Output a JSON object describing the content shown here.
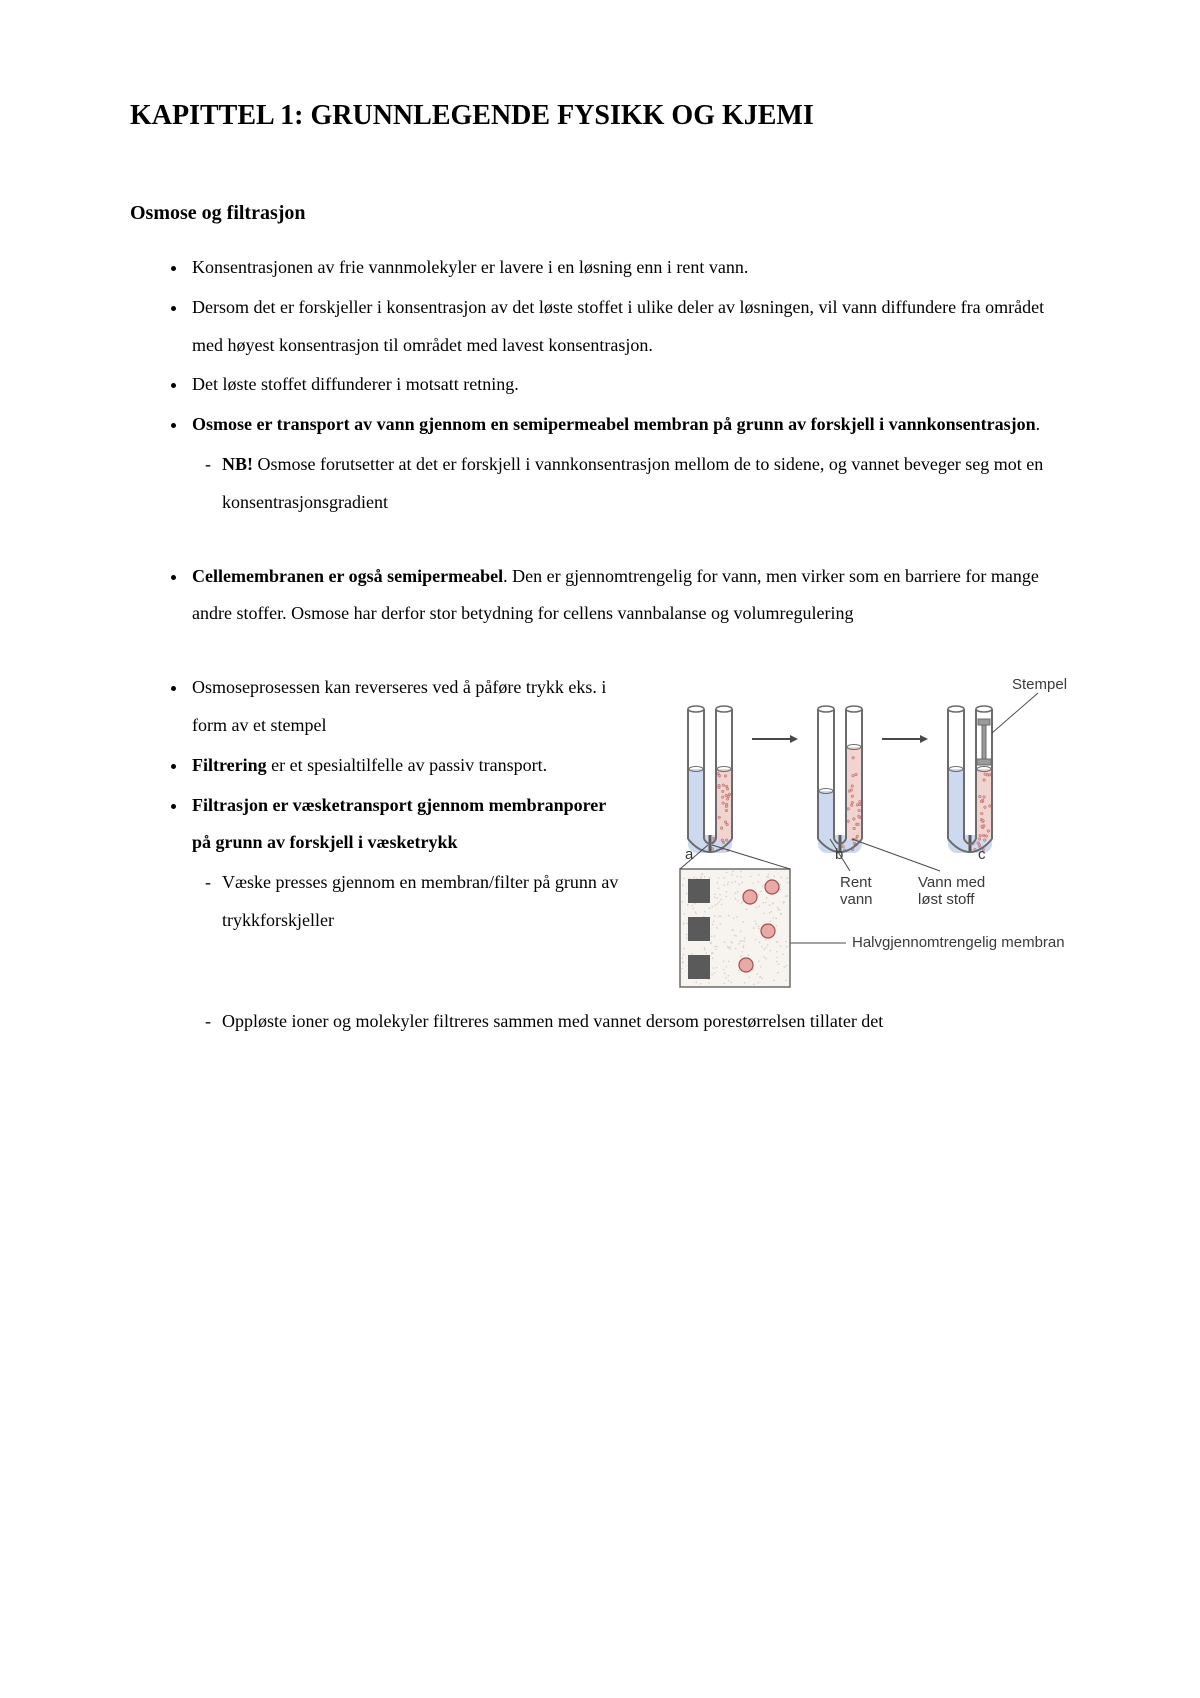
{
  "title": "KAPITTEL 1: GRUNNLEGENDE FYSIKK OG KJEMI",
  "subheading": "Osmose og filtrasjon",
  "b1": "Konsentrasjonen av frie vannmolekyler er lavere i en løsning enn i rent vann.",
  "b2": "Dersom det er forskjeller i konsentrasjon av det løste stoffet i ulike deler av løsningen, vil vann diffundere fra området med høyest konsentrasjon til området med lavest konsentrasjon.",
  "b3": "Det løste stoffet diffunderer i motsatt retning.",
  "b4a": "Osmose er transport av vann gjennom en semipermeabel membran på grunn av forskjell i vannkonsentrasjon",
  "b4_end": ".",
  "b4_sub_nb": "NB!",
  "b4_sub_rest": " Osmose forutsetter at det er forskjell i vannkonsentrasjon mellom de to sidene, og vannet beveger seg mot en konsentrasjonsgradient",
  "b5a": "Cellemembranen er også semipermeabel",
  "b5b": ". Den er gjennomtrengelig for vann, men virker som en barriere for mange andre stoffer. Osmose har derfor stor betydning for cellens vannbalanse og volumregulering",
  "c1": "Osmoseprosessen kan reverseres ved å påføre trykk eks. i form av et stempel",
  "c2a": "Filtrering",
  "c2b": " er et spesialtilfelle av passiv transport.",
  "c3": "Filtrasjon er væsketransport gjennom membranporer på grunn av forskjell i væsketrykk",
  "c3_s1": "Væske presses gjennom en membran/filter på grunn av trykkforskjeller",
  "c3_s2": "Oppløste ioner og molekyler filtreres sammen med vannet dersom porestørrelsen tillater det",
  "fig": {
    "type": "diagram",
    "labels": {
      "stempel": "Stempel",
      "a": "a",
      "b": "b",
      "c": "c",
      "rent": "Rent vann",
      "lost": "Vann med løst stoff",
      "membran": "Halvgjennomtrengelig membran"
    },
    "colors": {
      "tube_fill_water": "#cdd9ef",
      "tube_fill_solute": "#f1d3d0",
      "tube_outline": "#6b6b6b",
      "dot_outline": "#a05050",
      "dot_fill": "#e9a9a4",
      "membrane_block": "#5a5a5a",
      "zoom_bg": "#f7f3ef",
      "zoom_speckle": "#d7cfc6",
      "leader": "#4a4a4a",
      "arrow": "#4a4a4a",
      "piston": "#9a9a9a",
      "text": "#3a3a3a"
    },
    "font_family": "Arial, Helvetica, sans-serif",
    "label_fontsize": 15
  }
}
